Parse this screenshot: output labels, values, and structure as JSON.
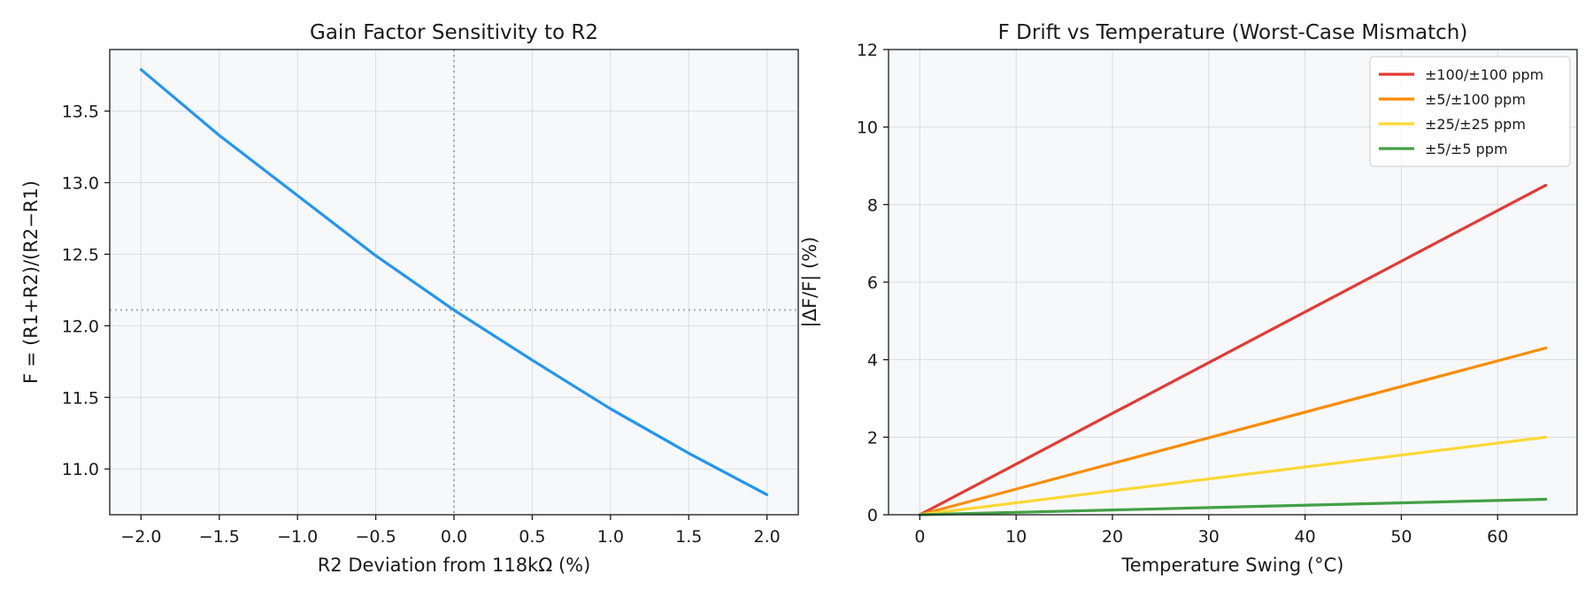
{
  "chart_data": [
    {
      "type": "line",
      "title": "Gain Factor Sensitivity to R2",
      "xlabel": "R2 Deviation from 118kΩ (%)",
      "ylabel": "F = (R1+R2)/(R2−R1)",
      "xlim": [
        -2.2,
        2.2
      ],
      "ylim": [
        10.68,
        13.93
      ],
      "xticks": [
        -2.0,
        -1.5,
        -1.0,
        -0.5,
        0.0,
        0.5,
        1.0,
        1.5,
        2.0
      ],
      "xtick_labels": [
        "−2.0",
        "−1.5",
        "−1.0",
        "−0.5",
        "0.0",
        "0.5",
        "1.0",
        "1.5",
        "2.0"
      ],
      "yticks": [
        11.0,
        11.5,
        12.0,
        12.5,
        13.0,
        13.5
      ],
      "ytick_labels": [
        "11.0",
        "11.5",
        "12.0",
        "12.5",
        "13.0",
        "13.5"
      ],
      "grid": true,
      "reference_lines": {
        "x": 0.0,
        "y": 12.11
      },
      "series": [
        {
          "color": "#2196F3",
          "x": [
            -2.0,
            -1.5,
            -1.0,
            -0.5,
            0.0,
            0.5,
            1.0,
            1.5,
            2.0
          ],
          "y": [
            13.79,
            13.33,
            12.91,
            12.49,
            12.11,
            11.76,
            11.42,
            11.11,
            10.82
          ]
        }
      ]
    },
    {
      "type": "line",
      "title": "F Drift vs Temperature (Worst-Case Mismatch)",
      "xlabel": "Temperature Swing (°C)",
      "ylabel": "|ΔF/F| (%)",
      "xlim": [
        -3.25,
        68.25
      ],
      "ylim": [
        0,
        12
      ],
      "xticks": [
        0,
        10,
        20,
        30,
        40,
        50,
        60
      ],
      "xtick_labels": [
        "0",
        "10",
        "20",
        "30",
        "40",
        "50",
        "60"
      ],
      "yticks": [
        0,
        2,
        4,
        6,
        8,
        10,
        12
      ],
      "ytick_labels": [
        "0",
        "2",
        "4",
        "6",
        "8",
        "10",
        "12"
      ],
      "grid": true,
      "legend_position": "top-right",
      "series": [
        {
          "name": "±100/±100 ppm",
          "color": "#E53935",
          "x": [
            0,
            65
          ],
          "y": [
            0,
            8.5
          ]
        },
        {
          "name": "±5/±100 ppm",
          "color": "#FB8C00",
          "x": [
            0,
            65
          ],
          "y": [
            0,
            4.3
          ]
        },
        {
          "name": "±25/±25 ppm",
          "color": "#FDD835",
          "x": [
            0,
            65
          ],
          "y": [
            0,
            2.0
          ]
        },
        {
          "name": "±5/±5 ppm",
          "color": "#43A047",
          "x": [
            0,
            65
          ],
          "y": [
            0,
            0.4
          ]
        }
      ]
    }
  ]
}
